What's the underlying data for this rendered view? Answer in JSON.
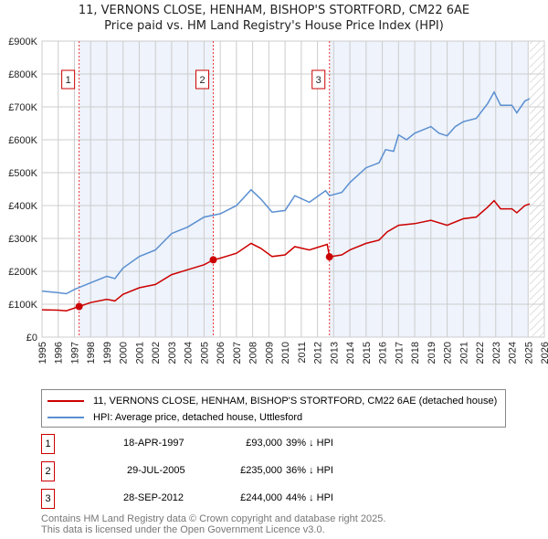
{
  "chart_data": {
    "type": "line",
    "title": "11, VERNONS CLOSE, HENHAM, BISHOP'S STORTFORD, CM22 6AE",
    "subtitle": "Price paid vs. HM Land Registry's House Price Index (HPI)",
    "xlim": [
      1995,
      2026
    ],
    "ylim": [
      0,
      900000
    ],
    "x_ticks": [
      "1995",
      "1996",
      "1997",
      "1998",
      "1999",
      "2000",
      "2001",
      "2002",
      "2003",
      "2004",
      "2005",
      "2006",
      "2007",
      "2008",
      "2009",
      "2010",
      "2011",
      "2012",
      "2013",
      "2014",
      "2015",
      "2016",
      "2017",
      "2018",
      "2019",
      "2020",
      "2021",
      "2022",
      "2023",
      "2024",
      "2025",
      "2026"
    ],
    "y_ticks": [
      {
        "v": 0,
        "label": "£0"
      },
      {
        "v": 100000,
        "label": "£100K"
      },
      {
        "v": 200000,
        "label": "£200K"
      },
      {
        "v": 300000,
        "label": "£300K"
      },
      {
        "v": 400000,
        "label": "£400K"
      },
      {
        "v": 500000,
        "label": "£500K"
      },
      {
        "v": 600000,
        "label": "£600K"
      },
      {
        "v": 700000,
        "label": "£700K"
      },
      {
        "v": 800000,
        "label": "£800K"
      },
      {
        "v": 900000,
        "label": "£900K"
      }
    ],
    "grid": true,
    "shaded_ranges": [
      [
        1997.29,
        2005.57
      ],
      [
        2012.74,
        2025.0
      ]
    ],
    "forecast_hatch_from": 2025.1,
    "series": [
      {
        "name": "11, VERNONS CLOSE, HENHAM, BISHOP'S STORTFORD, CM22 6AE (detached house)",
        "color": "#cc0000",
        "points": [
          [
            1995,
            83000
          ],
          [
            1996,
            82000
          ],
          [
            1996.5,
            80000
          ],
          [
            1997.29,
            93000
          ],
          [
            1998,
            105000
          ],
          [
            1999,
            115000
          ],
          [
            1999.5,
            110000
          ],
          [
            2000,
            130000
          ],
          [
            2001,
            150000
          ],
          [
            2002,
            160000
          ],
          [
            2003,
            190000
          ],
          [
            2004,
            205000
          ],
          [
            2005,
            220000
          ],
          [
            2005.57,
            235000
          ],
          [
            2006,
            240000
          ],
          [
            2007,
            255000
          ],
          [
            2007.9,
            285000
          ],
          [
            2008.5,
            270000
          ],
          [
            2009.2,
            245000
          ],
          [
            2010,
            250000
          ],
          [
            2010.6,
            275000
          ],
          [
            2011.5,
            265000
          ],
          [
            2012.6,
            282000
          ],
          [
            2012.74,
            244000
          ],
          [
            2013.5,
            250000
          ],
          [
            2014,
            265000
          ],
          [
            2015,
            285000
          ],
          [
            2015.8,
            295000
          ],
          [
            2016.3,
            320000
          ],
          [
            2017,
            340000
          ],
          [
            2018,
            345000
          ],
          [
            2019,
            355000
          ],
          [
            2020,
            340000
          ],
          [
            2021,
            360000
          ],
          [
            2021.8,
            365000
          ],
          [
            2022.5,
            395000
          ],
          [
            2022.9,
            415000
          ],
          [
            2023.3,
            390000
          ],
          [
            2024,
            390000
          ],
          [
            2024.3,
            378000
          ],
          [
            2024.8,
            400000
          ],
          [
            2025.1,
            405000
          ]
        ]
      },
      {
        "name": "HPI: Average price, detached house, Uttlesford",
        "color": "#5b8fd0",
        "points": [
          [
            1995,
            140000
          ],
          [
            1996,
            135000
          ],
          [
            1996.5,
            132000
          ],
          [
            1997,
            145000
          ],
          [
            1998,
            165000
          ],
          [
            1999,
            185000
          ],
          [
            1999.5,
            178000
          ],
          [
            2000,
            210000
          ],
          [
            2001,
            245000
          ],
          [
            2002,
            265000
          ],
          [
            2003,
            315000
          ],
          [
            2004,
            335000
          ],
          [
            2005,
            365000
          ],
          [
            2006,
            375000
          ],
          [
            2007,
            400000
          ],
          [
            2007.9,
            448000
          ],
          [
            2008.5,
            420000
          ],
          [
            2009.2,
            380000
          ],
          [
            2010,
            385000
          ],
          [
            2010.6,
            430000
          ],
          [
            2011.5,
            410000
          ],
          [
            2012.5,
            445000
          ],
          [
            2012.74,
            430000
          ],
          [
            2013.5,
            440000
          ],
          [
            2014,
            470000
          ],
          [
            2015,
            515000
          ],
          [
            2015.8,
            530000
          ],
          [
            2016.2,
            570000
          ],
          [
            2016.7,
            565000
          ],
          [
            2017,
            615000
          ],
          [
            2017.5,
            600000
          ],
          [
            2018,
            620000
          ],
          [
            2019,
            640000
          ],
          [
            2019.5,
            620000
          ],
          [
            2020,
            612000
          ],
          [
            2020.5,
            640000
          ],
          [
            2021,
            655000
          ],
          [
            2021.8,
            665000
          ],
          [
            2022.5,
            710000
          ],
          [
            2022.9,
            745000
          ],
          [
            2023.3,
            705000
          ],
          [
            2024,
            705000
          ],
          [
            2024.3,
            682000
          ],
          [
            2024.8,
            718000
          ],
          [
            2025.1,
            725000
          ]
        ]
      }
    ],
    "sales": [
      {
        "label": "1",
        "x": 1997.29,
        "y": 93000
      },
      {
        "label": "2",
        "x": 2005.57,
        "y": 235000
      },
      {
        "label": "3",
        "x": 2012.74,
        "y": 244000
      }
    ]
  },
  "title_line1": "11, VERNONS CLOSE, HENHAM, BISHOP'S STORTFORD, CM22 6AE",
  "title_line2": "Price paid vs. HM Land Registry's House Price Index (HPI)",
  "legend": {
    "red": "11, VERNONS CLOSE, HENHAM, BISHOP'S STORTFORD, CM22 6AE (detached house)",
    "blue": "HPI: Average price, detached house, Uttlesford"
  },
  "table": [
    {
      "num": "1",
      "date": "18-APR-1997",
      "price": "£93,000",
      "hpi": "39% ↓ HPI"
    },
    {
      "num": "2",
      "date": "29-JUL-2005",
      "price": "£235,000",
      "hpi": "36% ↓ HPI"
    },
    {
      "num": "3",
      "date": "28-SEP-2012",
      "price": "£244,000",
      "hpi": "44% ↓ HPI"
    }
  ],
  "footer1": "Contains HM Land Registry data © Crown copyright and database right 2025.",
  "footer2": "This data is licensed under the Open Government Licence v3.0."
}
